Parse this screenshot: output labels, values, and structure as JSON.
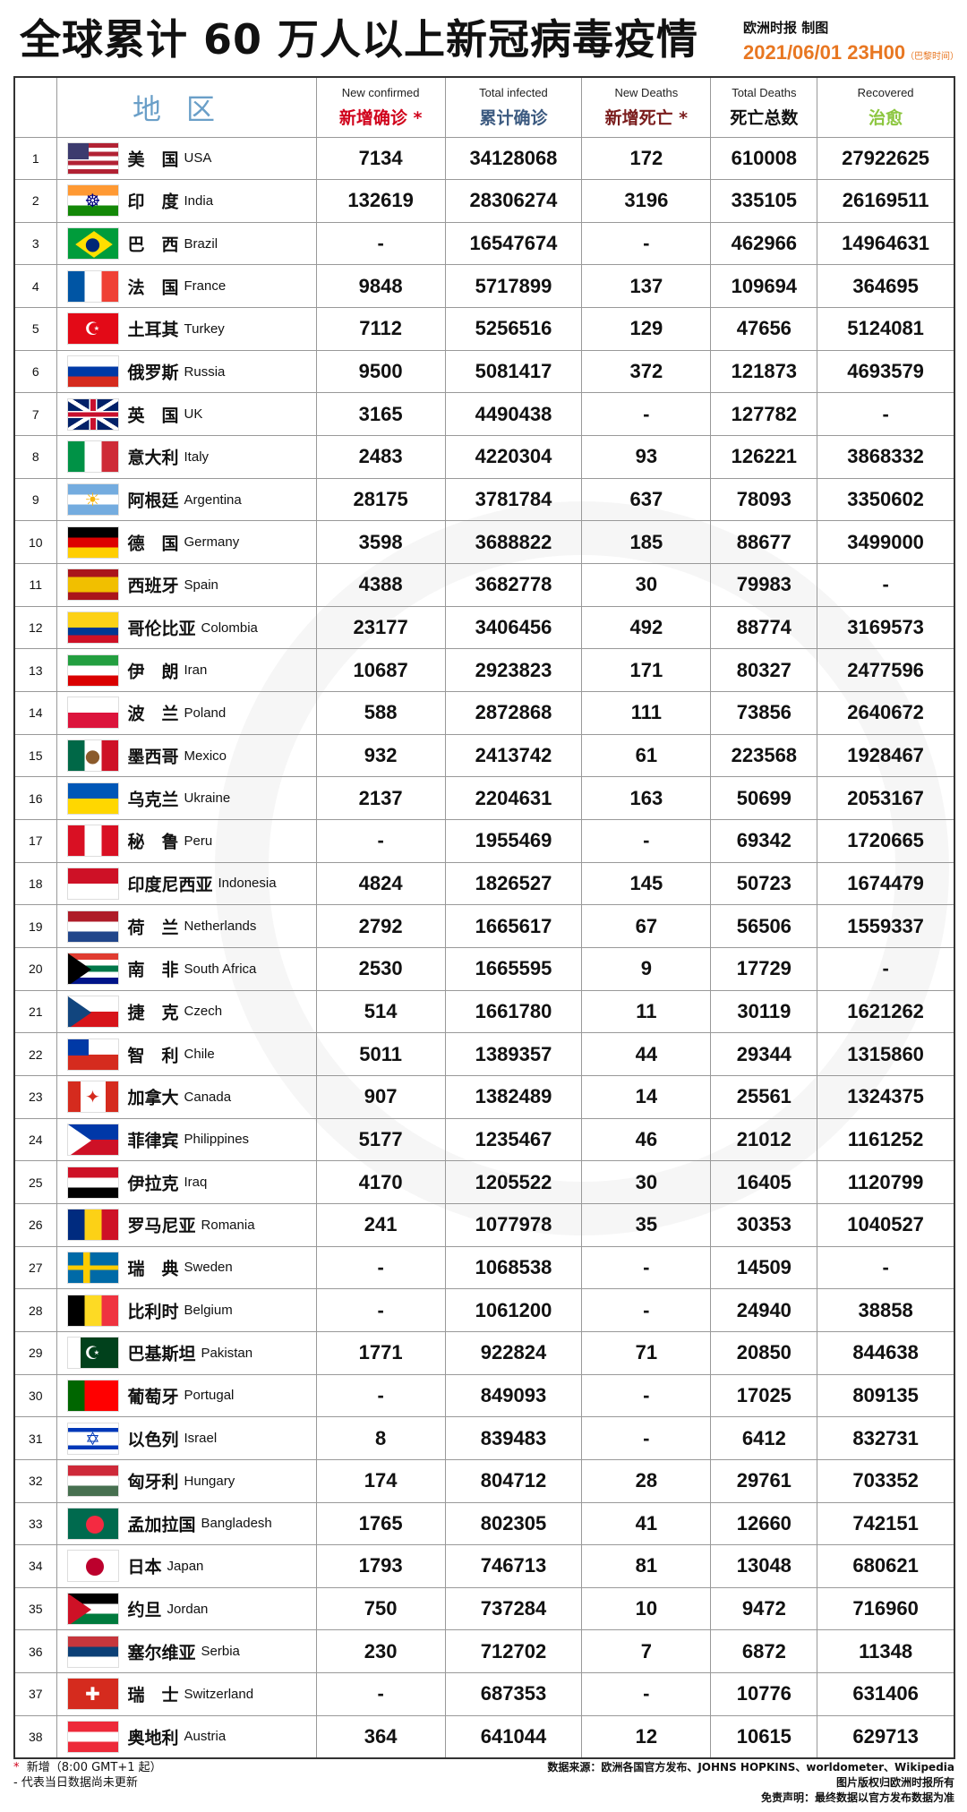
{
  "header": {
    "title": "全球累计 60 万人以上新冠病毒疫情",
    "maker": "欧洲时报 制图",
    "date": "2021/06/01 23H00",
    "timezone": "（巴黎时间）"
  },
  "columns": {
    "region": {
      "cn": "地区"
    },
    "new_confirmed": {
      "en": "New confirmed",
      "cn": "新增确诊 *",
      "color": "#d0021b"
    },
    "total_infected": {
      "en": "Total infected",
      "cn": "累计确诊",
      "color": "#3c5a80"
    },
    "new_deaths": {
      "en": "New Deaths",
      "cn": "新增死亡 *",
      "color": "#7a1c1c"
    },
    "total_deaths": {
      "en": "Total Deaths",
      "cn": "死亡总数",
      "color": "#111111"
    },
    "recovered": {
      "en": "Recovered",
      "cn": "治愈",
      "color": "#8cc63f"
    }
  },
  "rows": [
    {
      "rank": "1",
      "cn": "美　国",
      "en": "USA",
      "new": "7134",
      "total": "34128068",
      "nd": "172",
      "td": "610008",
      "rec": "27922625",
      "flag": {
        "dir": "h",
        "colors": [
          "#b22234",
          "#fff",
          "#b22234",
          "#fff",
          "#b22234",
          "#fff",
          "#b22234"
        ],
        "extra": "canton",
        "extra_color": "#3c3b6e"
      }
    },
    {
      "rank": "2",
      "cn": "印　度",
      "en": "India",
      "new": "132619",
      "total": "28306274",
      "nd": "3196",
      "td": "335105",
      "rec": "26169511",
      "flag": {
        "dir": "h",
        "colors": [
          "#ff9933",
          "#ffffff",
          "#138808"
        ],
        "mark": "☸",
        "mark_color": "#000080"
      }
    },
    {
      "rank": "3",
      "cn": "巴　西",
      "en": "Brazil",
      "new": "-",
      "total": "16547674",
      "nd": "-",
      "td": "462966",
      "rec": "14964631",
      "flag": {
        "dir": "h",
        "colors": [
          "#009c3b"
        ],
        "extra": "diamond",
        "extra_color": "#ffdf00",
        "mark": "●",
        "mark_color": "#002776"
      }
    },
    {
      "rank": "4",
      "cn": "法　国",
      "en": "France",
      "new": "9848",
      "total": "5717899",
      "nd": "137",
      "td": "109694",
      "rec": "364695",
      "flag": {
        "dir": "v",
        "colors": [
          "#0055a4",
          "#ffffff",
          "#ef4135"
        ]
      }
    },
    {
      "rank": "5",
      "cn": "土耳其",
      "en": "Turkey",
      "new": "7112",
      "total": "5256516",
      "nd": "129",
      "td": "47656",
      "rec": "5124081",
      "flag": {
        "dir": "h",
        "colors": [
          "#e30a17"
        ],
        "mark": "☪",
        "mark_color": "#ffffff"
      }
    },
    {
      "rank": "6",
      "cn": "俄罗斯",
      "en": "Russia",
      "new": "9500",
      "total": "5081417",
      "nd": "372",
      "td": "121873",
      "rec": "4693579",
      "flag": {
        "dir": "h",
        "colors": [
          "#ffffff",
          "#0039a6",
          "#d52b1e"
        ]
      }
    },
    {
      "rank": "7",
      "cn": "英　国",
      "en": "UK",
      "new": "3165",
      "total": "4490438",
      "nd": "-",
      "td": "127782",
      "rec": "-",
      "flag": {
        "dir": "h",
        "colors": [
          "#012169"
        ],
        "extra": "ukcross",
        "extra_color": "#c8102e"
      }
    },
    {
      "rank": "8",
      "cn": "意大利",
      "en": "Italy",
      "new": "2483",
      "total": "4220304",
      "nd": "93",
      "td": "126221",
      "rec": "3868332",
      "flag": {
        "dir": "v",
        "colors": [
          "#009246",
          "#ffffff",
          "#ce2b37"
        ]
      }
    },
    {
      "rank": "9",
      "cn": "阿根廷",
      "en": "Argentina",
      "new": "28175",
      "total": "3781784",
      "nd": "637",
      "td": "78093",
      "rec": "3350602",
      "flag": {
        "dir": "h",
        "colors": [
          "#74acdf",
          "#ffffff",
          "#74acdf"
        ],
        "mark": "☀",
        "mark_color": "#f6b40e"
      }
    },
    {
      "rank": "10",
      "cn": "德　国",
      "en": "Germany",
      "new": "3598",
      "total": "3688822",
      "nd": "185",
      "td": "88677",
      "rec": "3499000",
      "flag": {
        "dir": "h",
        "colors": [
          "#000000",
          "#dd0000",
          "#ffce00"
        ]
      }
    },
    {
      "rank": "11",
      "cn": "西班牙",
      "en": "Spain",
      "new": "4388",
      "total": "3682778",
      "nd": "30",
      "td": "79983",
      "rec": "-",
      "flag": {
        "dir": "h",
        "colors": [
          "#aa151b",
          "#f1bf00",
          "#f1bf00",
          "#aa151b"
        ]
      }
    },
    {
      "rank": "12",
      "cn": "哥伦比亚",
      "en": "Colombia",
      "new": "23177",
      "total": "3406456",
      "nd": "492",
      "td": "88774",
      "rec": "3169573",
      "flag": {
        "dir": "h",
        "colors": [
          "#fcd116",
          "#fcd116",
          "#003893",
          "#ce1126"
        ]
      }
    },
    {
      "rank": "13",
      "cn": "伊　朗",
      "en": "Iran",
      "new": "10687",
      "total": "2923823",
      "nd": "171",
      "td": "80327",
      "rec": "2477596",
      "flag": {
        "dir": "h",
        "colors": [
          "#239f40",
          "#ffffff",
          "#da0000"
        ]
      }
    },
    {
      "rank": "14",
      "cn": "波　兰",
      "en": "Poland",
      "new": "588",
      "total": "2872868",
      "nd": "111",
      "td": "73856",
      "rec": "2640672",
      "flag": {
        "dir": "h",
        "colors": [
          "#ffffff",
          "#dc143c"
        ]
      }
    },
    {
      "rank": "15",
      "cn": "墨西哥",
      "en": "Mexico",
      "new": "932",
      "total": "2413742",
      "nd": "61",
      "td": "223568",
      "rec": "1928467",
      "flag": {
        "dir": "v",
        "colors": [
          "#006847",
          "#ffffff",
          "#ce1126"
        ],
        "mark": "●",
        "mark_color": "#8b5a2b"
      }
    },
    {
      "rank": "16",
      "cn": "乌克兰",
      "en": "Ukraine",
      "new": "2137",
      "total": "2204631",
      "nd": "163",
      "td": "50699",
      "rec": "2053167",
      "flag": {
        "dir": "h",
        "colors": [
          "#0057b7",
          "#ffd700"
        ]
      }
    },
    {
      "rank": "17",
      "cn": "秘　鲁",
      "en": "Peru",
      "new": "-",
      "total": "1955469",
      "nd": "-",
      "td": "69342",
      "rec": "1720665",
      "flag": {
        "dir": "v",
        "colors": [
          "#d91023",
          "#ffffff",
          "#d91023"
        ]
      }
    },
    {
      "rank": "18",
      "cn": "印度尼西亚",
      "en": "Indonesia",
      "new": "4824",
      "total": "1826527",
      "nd": "145",
      "td": "50723",
      "rec": "1674479",
      "flag": {
        "dir": "h",
        "colors": [
          "#ce1126",
          "#ffffff"
        ]
      }
    },
    {
      "rank": "19",
      "cn": "荷　兰",
      "en": "Netherlands",
      "new": "2792",
      "total": "1665617",
      "nd": "67",
      "td": "56506",
      "rec": "1559337",
      "flag": {
        "dir": "h",
        "colors": [
          "#ae1c28",
          "#ffffff",
          "#21468b"
        ]
      }
    },
    {
      "rank": "20",
      "cn": "南　非",
      "en": "South Africa",
      "new": "2530",
      "total": "1665595",
      "nd": "9",
      "td": "17729",
      "rec": "-",
      "flag": {
        "dir": "h",
        "colors": [
          "#e03c31",
          "#ffffff",
          "#007749",
          "#ffffff",
          "#001489"
        ],
        "extra": "triangle",
        "extra_color": "#000000"
      }
    },
    {
      "rank": "21",
      "cn": "捷　克",
      "en": "Czech",
      "new": "514",
      "total": "1661780",
      "nd": "11",
      "td": "30119",
      "rec": "1621262",
      "flag": {
        "dir": "h",
        "colors": [
          "#ffffff",
          "#d7141a"
        ],
        "extra": "triangle",
        "extra_color": "#11457e"
      }
    },
    {
      "rank": "22",
      "cn": "智　利",
      "en": "Chile",
      "new": "5011",
      "total": "1389357",
      "nd": "44",
      "td": "29344",
      "rec": "1315860",
      "flag": {
        "dir": "h",
        "colors": [
          "#ffffff",
          "#d52b1e"
        ],
        "extra": "canton",
        "extra_color": "#0039a6"
      }
    },
    {
      "rank": "23",
      "cn": "加拿大",
      "en": "Canada",
      "new": "907",
      "total": "1382489",
      "nd": "14",
      "td": "25561",
      "rec": "1324375",
      "flag": {
        "dir": "v",
        "colors": [
          "#d52b1e",
          "#ffffff",
          "#ffffff",
          "#d52b1e"
        ],
        "mark": "✦",
        "mark_color": "#d52b1e"
      }
    },
    {
      "rank": "24",
      "cn": "菲律宾",
      "en": "Philippines",
      "new": "5177",
      "total": "1235467",
      "nd": "46",
      "td": "21012",
      "rec": "1161252",
      "flag": {
        "dir": "h",
        "colors": [
          "#0038a8",
          "#ce1126"
        ],
        "extra": "triangle",
        "extra_color": "#ffffff"
      }
    },
    {
      "rank": "25",
      "cn": "伊拉克",
      "en": "Iraq",
      "new": "4170",
      "total": "1205522",
      "nd": "30",
      "td": "16405",
      "rec": "1120799",
      "flag": {
        "dir": "h",
        "colors": [
          "#ce1126",
          "#ffffff",
          "#000000"
        ]
      }
    },
    {
      "rank": "26",
      "cn": "罗马尼亚",
      "en": "Romania",
      "new": "241",
      "total": "1077978",
      "nd": "35",
      "td": "30353",
      "rec": "1040527",
      "flag": {
        "dir": "v",
        "colors": [
          "#002b7f",
          "#fcd116",
          "#ce1126"
        ]
      }
    },
    {
      "rank": "27",
      "cn": "瑞　典",
      "en": "Sweden",
      "new": "-",
      "total": "1068538",
      "nd": "-",
      "td": "14509",
      "rec": "-",
      "flag": {
        "dir": "h",
        "colors": [
          "#006aa7"
        ],
        "extra": "nordic",
        "extra_color": "#fecc00"
      }
    },
    {
      "rank": "28",
      "cn": "比利时",
      "en": "Belgium",
      "new": "-",
      "total": "1061200",
      "nd": "-",
      "td": "24940",
      "rec": "38858",
      "flag": {
        "dir": "v",
        "colors": [
          "#000000",
          "#fdda24",
          "#ef3340"
        ]
      }
    },
    {
      "rank": "29",
      "cn": "巴基斯坦",
      "en": "Pakistan",
      "new": "1771",
      "total": "922824",
      "nd": "71",
      "td": "20850",
      "rec": "844638",
      "flag": {
        "dir": "v",
        "colors": [
          "#ffffff",
          "#01411c",
          "#01411c",
          "#01411c"
        ],
        "mark": "☪",
        "mark_color": "#ffffff"
      }
    },
    {
      "rank": "30",
      "cn": "葡萄牙",
      "en": "Portugal",
      "new": "-",
      "total": "849093",
      "nd": "-",
      "td": "17025",
      "rec": "809135",
      "flag": {
        "dir": "v",
        "colors": [
          "#006600",
          "#ff0000",
          "#ff0000"
        ]
      }
    },
    {
      "rank": "31",
      "cn": "以色列",
      "en": "Israel",
      "new": "8",
      "total": "839483",
      "nd": "-",
      "td": "6412",
      "rec": "832731",
      "flag": {
        "dir": "h",
        "colors": [
          "#ffffff",
          "#0038b8",
          "#ffffff",
          "#ffffff",
          "#ffffff",
          "#0038b8",
          "#ffffff"
        ],
        "mark": "✡",
        "mark_color": "#0038b8"
      }
    },
    {
      "rank": "32",
      "cn": "匈牙利",
      "en": "Hungary",
      "new": "174",
      "total": "804712",
      "nd": "28",
      "td": "29761",
      "rec": "703352",
      "flag": {
        "dir": "h",
        "colors": [
          "#ce2939",
          "#ffffff",
          "#477050"
        ]
      }
    },
    {
      "rank": "33",
      "cn": "孟加拉国",
      "en": "Bangladesh",
      "new": "1765",
      "total": "802305",
      "nd": "41",
      "td": "12660",
      "rec": "742151",
      "flag": {
        "dir": "h",
        "colors": [
          "#006a4e"
        ],
        "extra": "circle",
        "extra_color": "#f42a41"
      }
    },
    {
      "rank": "34",
      "cn": "日本",
      "en": "Japan",
      "new": "1793",
      "total": "746713",
      "nd": "81",
      "td": "13048",
      "rec": "680621",
      "flag": {
        "dir": "h",
        "colors": [
          "#ffffff"
        ],
        "extra": "circle",
        "extra_color": "#bc002d"
      }
    },
    {
      "rank": "35",
      "cn": "约旦",
      "en": "Jordan",
      "new": "750",
      "total": "737284",
      "nd": "10",
      "td": "9472",
      "rec": "716960",
      "flag": {
        "dir": "h",
        "colors": [
          "#000000",
          "#ffffff",
          "#007a3d"
        ],
        "extra": "triangle",
        "extra_color": "#ce1126"
      }
    },
    {
      "rank": "36",
      "cn": "塞尔维亚",
      "en": "Serbia",
      "new": "230",
      "total": "712702",
      "nd": "7",
      "td": "6872",
      "rec": "11348",
      "flag": {
        "dir": "h",
        "colors": [
          "#c6363c",
          "#0c4076",
          "#ffffff"
        ]
      }
    },
    {
      "rank": "37",
      "cn": "瑞　士",
      "en": "Switzerland",
      "new": "-",
      "total": "687353",
      "nd": "-",
      "td": "10776",
      "rec": "631406",
      "flag": {
        "dir": "h",
        "colors": [
          "#d52b1e"
        ],
        "mark": "✚",
        "mark_color": "#ffffff"
      }
    },
    {
      "rank": "38",
      "cn": "奥地利",
      "en": "Austria",
      "new": "364",
      "total": "641044",
      "nd": "12",
      "td": "10615",
      "rec": "629713",
      "flag": {
        "dir": "h",
        "colors": [
          "#ed2939",
          "#ffffff",
          "#ed2939"
        ]
      }
    }
  ],
  "footer": {
    "note1_mark": "*",
    "note1": "新增（8:00 GMT+1 起）",
    "note2": "-  代表当日数据尚未更新",
    "source": "数据来源：欧洲各国官方发布、JOHNS HOPKINS、worldometer、Wikipedia",
    "copyright": "图片版权归欧洲时报所有",
    "disclaimer": "免责声明：最终数据以官方发布数据为准"
  }
}
